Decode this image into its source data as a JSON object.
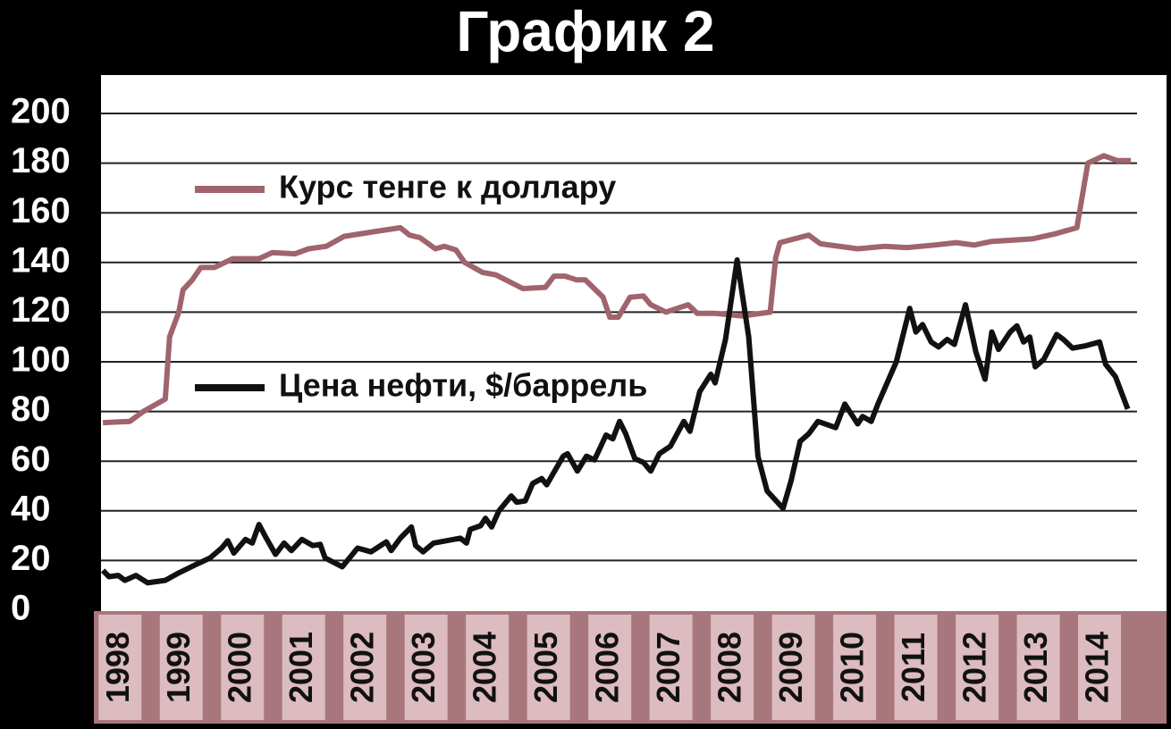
{
  "chart_data": {
    "type": "line",
    "title": "График 2",
    "xlim": [
      1998,
      2015.2
    ],
    "xticks": [
      {
        "value": 1998.5,
        "label": "1998"
      },
      {
        "value": 1999.5,
        "label": "1999"
      },
      {
        "value": 2000.5,
        "label": "2000"
      },
      {
        "value": 2001.5,
        "label": "2001"
      },
      {
        "value": 2002.5,
        "label": "2002"
      },
      {
        "value": 2003.5,
        "label": "2003"
      },
      {
        "value": 2004.5,
        "label": "2004"
      },
      {
        "value": 2005.5,
        "label": "2005"
      },
      {
        "value": 2006.5,
        "label": "2006"
      },
      {
        "value": 2007.5,
        "label": "2007"
      },
      {
        "value": 2008.5,
        "label": "2008"
      },
      {
        "value": 2009.5,
        "label": "2009"
      },
      {
        "value": 2010.5,
        "label": "2010"
      },
      {
        "value": 2011.5,
        "label": "2011"
      },
      {
        "value": 2012.5,
        "label": "2012"
      },
      {
        "value": 2013.5,
        "label": "2013"
      },
      {
        "value": 2014.5,
        "label": "2014"
      }
    ],
    "ylim": [
      0,
      200
    ],
    "yticks": [
      0,
      20,
      40,
      60,
      80,
      100,
      120,
      140,
      160,
      180,
      200
    ],
    "grid": true,
    "series": [
      {
        "name": "Курс тенге к доллару",
        "color": "#a0646c",
        "x": [
          1998.22,
          1998.66,
          1998.88,
          1999.24,
          1999.31,
          1999.46,
          1999.53,
          1999.68,
          1999.82,
          2000.04,
          2000.34,
          2000.77,
          2000.99,
          2001.36,
          2001.58,
          2001.87,
          2002.16,
          2002.67,
          2003.08,
          2003.23,
          2003.4,
          2003.65,
          2003.8,
          2003.99,
          2004.13,
          2004.42,
          2004.64,
          2005.08,
          2005.45,
          2005.59,
          2005.77,
          2005.96,
          2006.1,
          2006.39,
          2006.5,
          2006.64,
          2006.83,
          2007.05,
          2007.17,
          2007.42,
          2007.78,
          2007.93,
          2008.22,
          2008.66,
          2009.12,
          2009.21,
          2009.28,
          2009.75,
          2009.94,
          2010.55,
          2010.99,
          2011.36,
          2011.8,
          2012.16,
          2012.45,
          2012.74,
          2013.4,
          2013.77,
          2014.13,
          2014.31,
          2014.57,
          2014.79,
          2015.01
        ],
        "values": [
          75.5,
          76,
          80,
          85,
          110,
          120,
          129,
          133,
          138,
          138,
          141.5,
          141.5,
          144,
          143.5,
          145.5,
          146.5,
          150.5,
          152.5,
          154,
          151,
          150,
          145.5,
          146.5,
          145,
          140,
          136,
          135,
          129.5,
          130,
          134.5,
          134.5,
          133,
          133,
          126,
          118,
          118,
          126,
          126.5,
          123,
          120,
          123,
          119.5,
          119.5,
          118.5,
          120,
          142,
          148,
          151,
          147.5,
          145.5,
          146.5,
          146,
          147,
          148,
          147,
          148.5,
          149.5,
          151.5,
          154,
          180,
          183,
          181,
          181
        ]
      },
      {
        "name": "Цена нефти, $/баррель",
        "color": "#111111",
        "x": [
          1998.22,
          1998.32,
          1998.47,
          1998.58,
          1998.76,
          1998.95,
          1999.24,
          1999.46,
          1999.75,
          1999.97,
          2000.16,
          2000.26,
          2000.36,
          2000.55,
          2000.66,
          2000.77,
          2000.89,
          2001.04,
          2001.18,
          2001.3,
          2001.47,
          2001.65,
          2001.77,
          2001.85,
          2002.13,
          2002.38,
          2002.6,
          2002.85,
          2002.93,
          2003.08,
          2003.26,
          2003.33,
          2003.45,
          2003.62,
          2004.06,
          2004.16,
          2004.22,
          2004.39,
          2004.47,
          2004.57,
          2004.69,
          2004.89,
          2004.98,
          2005.12,
          2005.24,
          2005.39,
          2005.47,
          2005.74,
          2005.81,
          2005.97,
          2006.12,
          2006.25,
          2006.44,
          2006.55,
          2006.66,
          2006.76,
          2006.91,
          2007.05,
          2007.17,
          2007.31,
          2007.49,
          2007.71,
          2007.81,
          2007.97,
          2008.15,
          2008.22,
          2008.39,
          2008.58,
          2008.77,
          2008.92,
          2009.07,
          2009.33,
          2009.46,
          2009.61,
          2009.75,
          2009.9,
          2010.19,
          2010.34,
          2010.55,
          2010.63,
          2010.77,
          2010.88,
          2011.18,
          2011.4,
          2011.5,
          2011.61,
          2011.75,
          2011.87,
          2012.01,
          2012.13,
          2012.31,
          2012.48,
          2012.63,
          2012.74,
          2012.85,
          2013.04,
          2013.15,
          2013.26,
          2013.36,
          2013.45,
          2013.59,
          2013.8,
          2013.91,
          2014.06,
          2014.28,
          2014.5,
          2014.6,
          2014.76,
          2014.96
        ],
        "values": [
          16,
          13.5,
          14,
          12,
          14,
          11,
          12,
          15,
          18.5,
          21,
          25,
          28,
          23,
          28.5,
          27,
          34.5,
          29,
          22.5,
          27,
          24,
          28.5,
          26,
          26.5,
          21,
          17.5,
          25,
          23.5,
          27.5,
          24,
          29,
          33.5,
          26,
          23.5,
          27,
          29,
          27,
          32.5,
          34,
          37,
          33.5,
          40,
          46,
          43.5,
          44,
          51,
          53,
          50.5,
          62,
          63,
          56,
          62,
          60.5,
          70.5,
          69,
          76,
          71,
          61,
          59.5,
          56,
          63,
          66,
          76,
          72,
          88,
          95,
          91.5,
          109,
          141,
          110,
          62,
          48,
          41,
          52,
          68,
          71,
          76,
          73.5,
          83,
          75,
          78,
          76,
          83,
          100,
          121.5,
          112,
          115,
          108,
          106,
          109,
          107,
          123,
          104,
          93,
          112,
          105,
          112,
          114.5,
          108,
          110,
          98,
          101,
          111,
          109,
          105.5,
          106.5,
          108,
          99,
          94,
          81
        ]
      }
    ]
  }
}
